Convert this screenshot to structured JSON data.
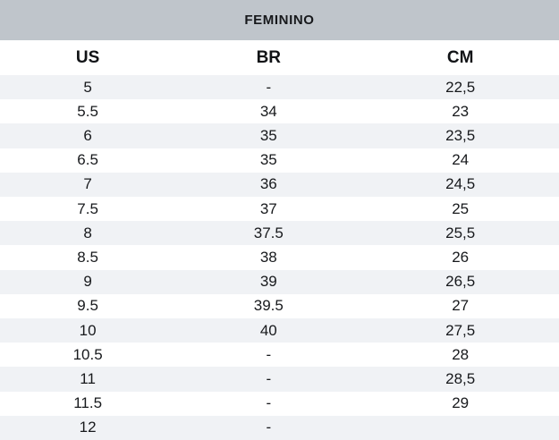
{
  "chart_data": {
    "type": "table",
    "title": "FEMININO",
    "columns": [
      "US",
      "BR",
      "CM"
    ],
    "rows": [
      [
        "5",
        "-",
        "22,5"
      ],
      [
        "5.5",
        "34",
        "23"
      ],
      [
        "6",
        "35",
        "23,5"
      ],
      [
        "6.5",
        "35",
        "24"
      ],
      [
        "7",
        "36",
        "24,5"
      ],
      [
        "7.5",
        "37",
        "25"
      ],
      [
        "8",
        "37.5",
        "25,5"
      ],
      [
        "8.5",
        "38",
        "26"
      ],
      [
        "9",
        "39",
        "26,5"
      ],
      [
        "9.5",
        "39.5",
        "27"
      ],
      [
        "10",
        "40",
        "27,5"
      ],
      [
        "10.5",
        "-",
        "28"
      ],
      [
        "11",
        "-",
        "28,5"
      ],
      [
        "11.5",
        "-",
        "29"
      ],
      [
        "12",
        "-",
        ""
      ]
    ],
    "layout_hints": {
      "zebra_striping": true,
      "first_data_row_shaded": true
    }
  },
  "colors": {
    "title_bar_bg": "#bfc5cb",
    "row_alt_bg": "#f0f2f5",
    "row_bg": "#ffffff",
    "text": "#17191c"
  }
}
